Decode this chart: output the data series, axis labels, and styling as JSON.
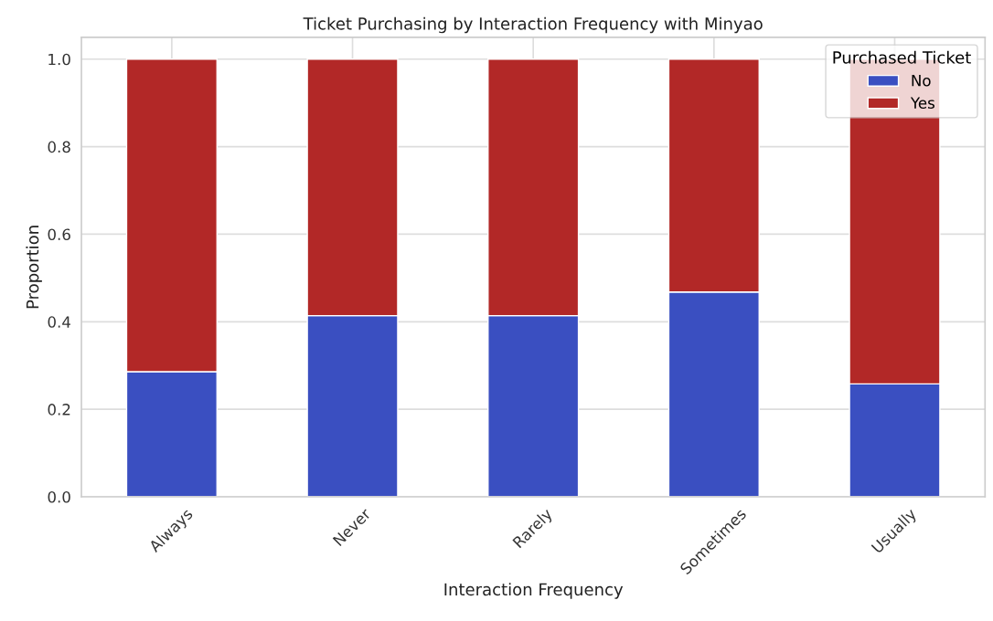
{
  "chart_data": {
    "type": "bar",
    "title": "Ticket Purchasing by Interaction Frequency with Minyao",
    "xlabel": "Interaction Frequency",
    "ylabel": "Proportion",
    "legend_title": "Purchased Ticket",
    "categories": [
      "Always",
      "Never",
      "Rarely",
      "Sometimes",
      "Usually"
    ],
    "series": [
      {
        "name": "No",
        "color": "#3a4fc1",
        "values": [
          0.286,
          0.414,
          0.414,
          0.468,
          0.258
        ]
      },
      {
        "name": "Yes",
        "color": "#b22827",
        "values": [
          0.714,
          0.586,
          0.586,
          0.532,
          0.742
        ]
      }
    ],
    "stacked": true,
    "ylim": [
      0,
      1.05
    ],
    "yticks": [
      {
        "value": 0,
        "label": "0.0"
      },
      {
        "value": 0.2,
        "label": "0.2"
      },
      {
        "value": 0.4,
        "label": "0.4"
      },
      {
        "value": 0.6,
        "label": "0.6"
      },
      {
        "value": 0.8,
        "label": "0.8"
      },
      {
        "value": 1.0,
        "label": "1.0"
      }
    ],
    "grid": true,
    "legend": "top right"
  }
}
